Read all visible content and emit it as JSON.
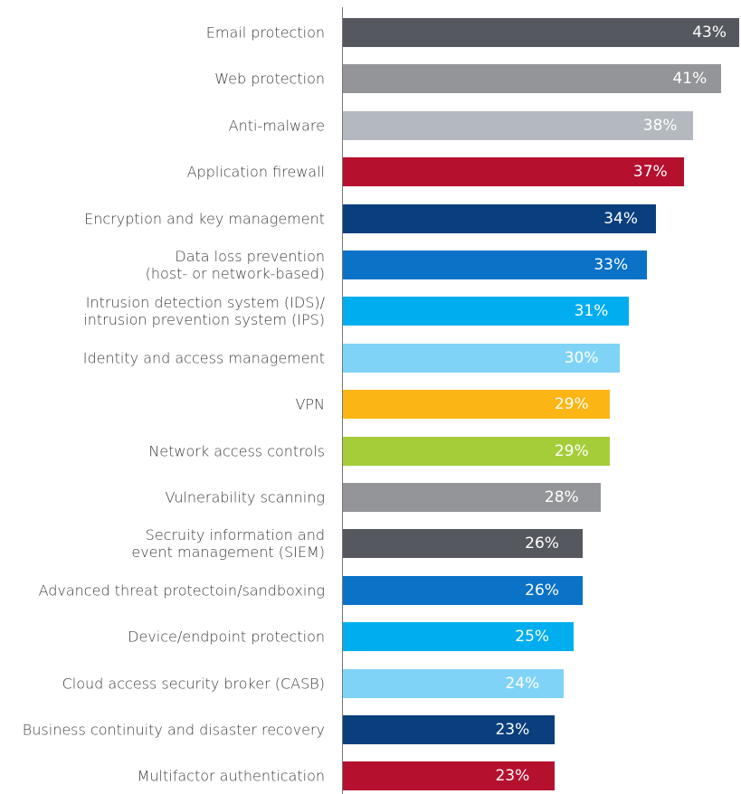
{
  "chart_data": {
    "type": "bar",
    "orientation": "horizontal",
    "categories": [
      "Email protection",
      "Web protection",
      "Anti-malware",
      "Application firewall",
      "Encryption and key management",
      "Data loss prevention\n(host- or network-based)",
      "Intrusion detection system (IDS)/\nintrusion prevention system (IPS)",
      "Identity and access management",
      "VPN",
      "Network access controls",
      "Vulnerability scanning",
      "Secruity information and \nevent management (SIEM)",
      "Advanced threat protectoin/sandboxing",
      "Device/endpoint protection",
      "Cloud access security broker (CASB)",
      "Business continuity and disaster recovery",
      "Multifactor authentication"
    ],
    "values": [
      43,
      41,
      38,
      37,
      34,
      33,
      31,
      30,
      29,
      29,
      28,
      26,
      26,
      25,
      24,
      23,
      23
    ],
    "value_labels": [
      "43%",
      "41%",
      "38%",
      "37%",
      "34%",
      "33%",
      "31%",
      "30%",
      "29%",
      "29%",
      "28%",
      "26%",
      "26%",
      "25%",
      "24%",
      "23%",
      "23%"
    ],
    "colors": [
      "#55585e",
      "#939598",
      "#b3b9bf",
      "#b5112f",
      "#0a3f7e",
      "#0a72c7",
      "#00aeef",
      "#7fd3f7",
      "#fbb615",
      "#a5cd39",
      "#939598",
      "#55585e",
      "#0a72c7",
      "#00aeef",
      "#7fd3f7",
      "#0a3f7e",
      "#b5112f"
    ],
    "xlim": [
      0,
      43
    ]
  }
}
